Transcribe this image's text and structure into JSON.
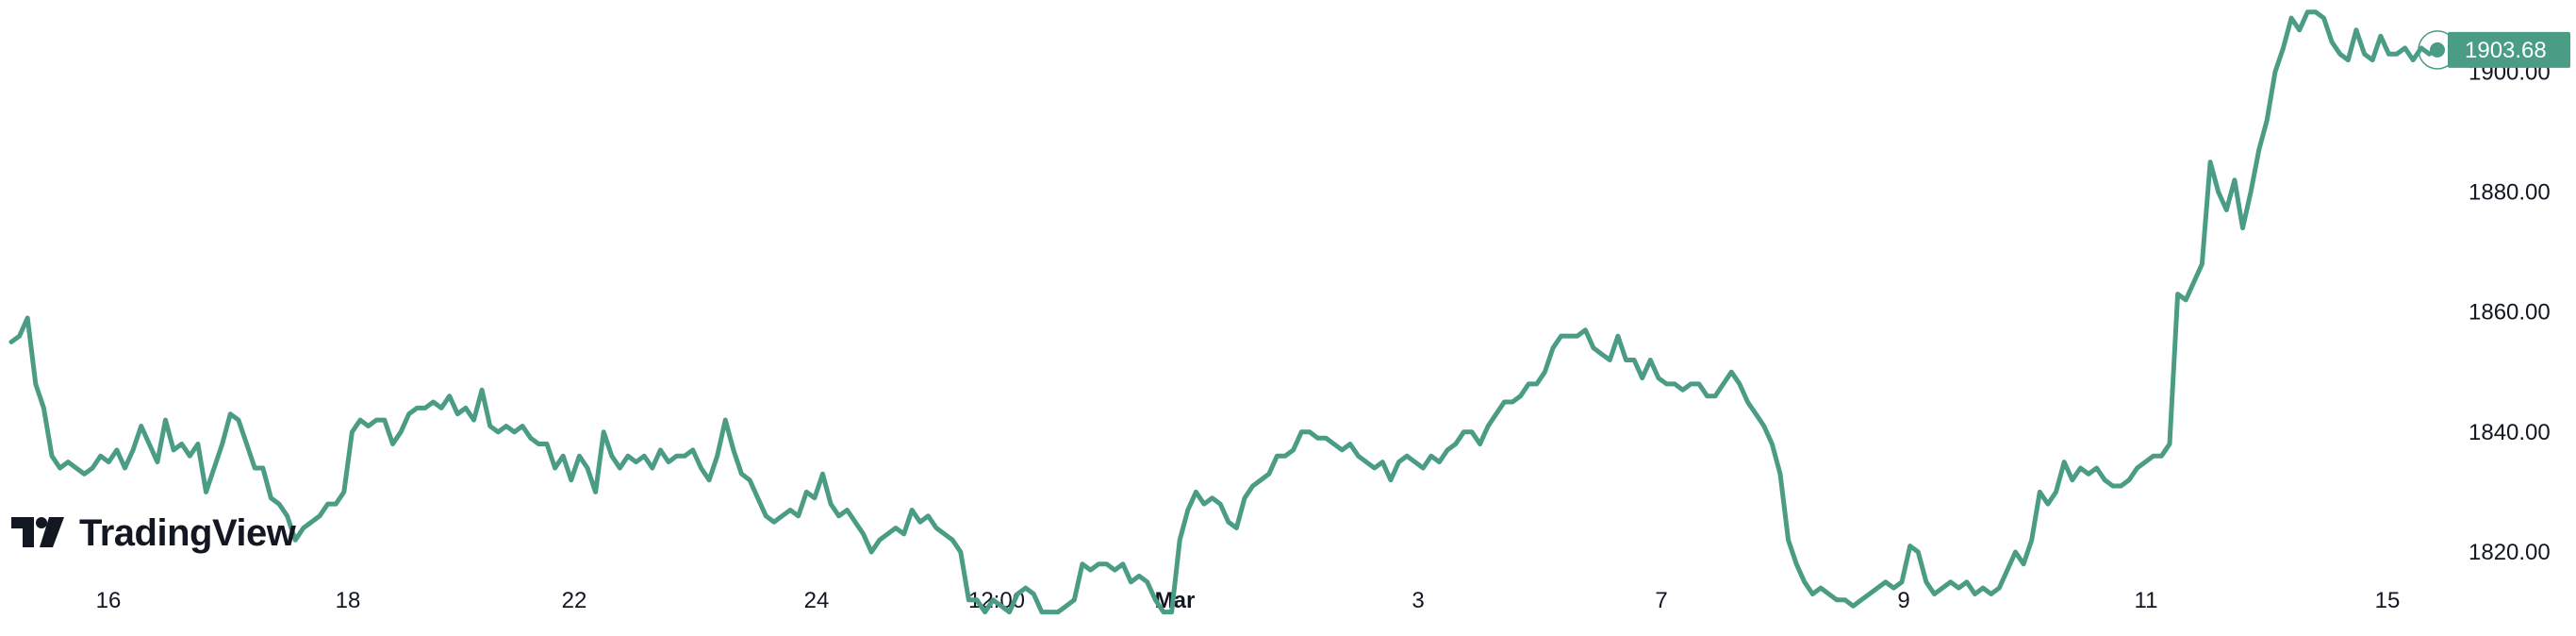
{
  "brand": {
    "name": "TradingView",
    "logo_icon": "tradingview-logo-icon"
  },
  "colors": {
    "line": "#4a9c84",
    "price_label_bg": "#4a9c84",
    "text": "#131722",
    "background": "#ffffff"
  },
  "chart_data": {
    "type": "line",
    "title": "",
    "xlabel": "",
    "ylabel": "",
    "grid": false,
    "last_price": 1903.68,
    "last_price_label": "1903.68",
    "ylim": [
      1806,
      1912
    ],
    "y_ticks": [
      "1820.00",
      "1840.00",
      "1860.00",
      "1880.00",
      "1900.00"
    ],
    "x_ticks": [
      {
        "label": "16",
        "bold": false
      },
      {
        "label": "18",
        "bold": false
      },
      {
        "label": "22",
        "bold": false
      },
      {
        "label": "24",
        "bold": false
      },
      {
        "label": "12:00",
        "bold": false
      },
      {
        "label": "Mar",
        "bold": true
      },
      {
        "label": "3",
        "bold": false
      },
      {
        "label": "7",
        "bold": false
      },
      {
        "label": "9",
        "bold": false
      },
      {
        "label": "11",
        "bold": false
      },
      {
        "label": "15",
        "bold": false
      }
    ],
    "series": [
      {
        "values": [
          1855,
          1856,
          1859,
          1848,
          1844,
          1836,
          1834,
          1835,
          1834,
          1833,
          1834,
          1836,
          1835,
          1837,
          1834,
          1837,
          1841,
          1838,
          1835,
          1842,
          1837,
          1838,
          1836,
          1838,
          1830,
          1834,
          1838,
          1843,
          1842,
          1838,
          1834,
          1834,
          1829,
          1828,
          1826,
          1822,
          1824,
          1825,
          1826,
          1828,
          1828,
          1830,
          1840,
          1842,
          1841,
          1842,
          1842,
          1838,
          1840,
          1843,
          1844,
          1844,
          1845,
          1844,
          1846,
          1843,
          1844,
          1842,
          1847,
          1841,
          1840,
          1841,
          1840,
          1841,
          1839,
          1838,
          1838,
          1834,
          1836,
          1832,
          1836,
          1834,
          1830,
          1840,
          1836,
          1834,
          1836,
          1835,
          1836,
          1834,
          1837,
          1835,
          1836,
          1836,
          1837,
          1834,
          1832,
          1836,
          1842,
          1837,
          1833,
          1832,
          1829,
          1826,
          1825,
          1826,
          1827,
          1826,
          1830,
          1829,
          1833,
          1828,
          1826,
          1827,
          1825,
          1823,
          1820,
          1822,
          1823,
          1824,
          1823,
          1827,
          1825,
          1826,
          1824,
          1823,
          1822,
          1820,
          1812,
          1812,
          1810,
          1812,
          1811,
          1810,
          1813,
          1814,
          1813,
          1810,
          1810,
          1810,
          1811,
          1812,
          1818,
          1817,
          1818,
          1818,
          1817,
          1818,
          1815,
          1816,
          1815,
          1812,
          1810,
          1810,
          1822,
          1827,
          1830,
          1828,
          1829,
          1828,
          1825,
          1824,
          1829,
          1831,
          1832,
          1833,
          1836,
          1836,
          1837,
          1840,
          1840,
          1839,
          1839,
          1838,
          1837,
          1838,
          1836,
          1835,
          1834,
          1835,
          1832,
          1835,
          1836,
          1835,
          1834,
          1836,
          1835,
          1837,
          1838,
          1840,
          1840,
          1838,
          1841,
          1843,
          1845,
          1845,
          1846,
          1848,
          1848,
          1850,
          1854,
          1856,
          1856,
          1856,
          1857,
          1854,
          1853,
          1852,
          1856,
          1852,
          1852,
          1849,
          1852,
          1849,
          1848,
          1848,
          1847,
          1848,
          1848,
          1846,
          1846,
          1848,
          1850,
          1848,
          1845,
          1843,
          1841,
          1838,
          1833,
          1822,
          1818,
          1815,
          1813,
          1814,
          1813,
          1812,
          1812,
          1811,
          1812,
          1813,
          1814,
          1815,
          1814,
          1815,
          1821,
          1820,
          1815,
          1813,
          1814,
          1815,
          1814,
          1815,
          1813,
          1814,
          1813,
          1814,
          1817,
          1820,
          1818,
          1822,
          1830,
          1828,
          1830,
          1835,
          1832,
          1834,
          1833,
          1834,
          1832,
          1831,
          1831,
          1832,
          1834,
          1835,
          1836,
          1836,
          1838,
          1863,
          1862,
          1865,
          1868,
          1885,
          1880,
          1877,
          1882,
          1874,
          1880,
          1887,
          1892,
          1900,
          1904,
          1909,
          1907,
          1910,
          1910,
          1909,
          1905,
          1903,
          1902,
          1907,
          1903,
          1902,
          1906,
          1903,
          1903,
          1904,
          1902,
          1904,
          1903,
          1903.68
        ]
      }
    ]
  }
}
